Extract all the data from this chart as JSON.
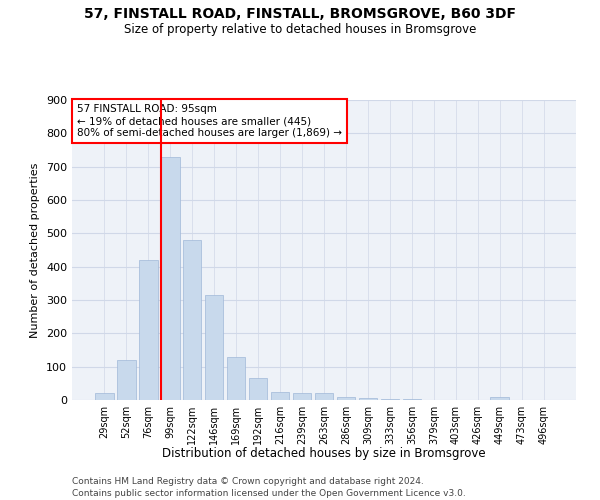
{
  "title_line1": "57, FINSTALL ROAD, FINSTALL, BROMSGROVE, B60 3DF",
  "title_line2": "Size of property relative to detached houses in Bromsgrove",
  "xlabel": "Distribution of detached houses by size in Bromsgrove",
  "ylabel": "Number of detached properties",
  "categories": [
    "29sqm",
    "52sqm",
    "76sqm",
    "99sqm",
    "122sqm",
    "146sqm",
    "169sqm",
    "192sqm",
    "216sqm",
    "239sqm",
    "263sqm",
    "286sqm",
    "309sqm",
    "333sqm",
    "356sqm",
    "379sqm",
    "403sqm",
    "426sqm",
    "449sqm",
    "473sqm",
    "496sqm"
  ],
  "bar_heights": [
    20,
    120,
    420,
    730,
    480,
    315,
    130,
    65,
    25,
    20,
    20,
    10,
    5,
    3,
    2,
    1,
    0,
    0,
    8,
    0,
    0
  ],
  "bar_color": "#c8d9ec",
  "bar_edge_color": "#a0b8d8",
  "redline_label": "57 FINSTALL ROAD: 95sqm",
  "annotation_line2": "← 19% of detached houses are smaller (445)",
  "annotation_line3": "80% of semi-detached houses are larger (1,869) →",
  "ylim": [
    0,
    900
  ],
  "yticks": [
    0,
    100,
    200,
    300,
    400,
    500,
    600,
    700,
    800,
    900
  ],
  "grid_color": "#d0d8e8",
  "bg_color": "#eef2f8",
  "footer_line1": "Contains HM Land Registry data © Crown copyright and database right 2024.",
  "footer_line2": "Contains public sector information licensed under the Open Government Licence v3.0."
}
